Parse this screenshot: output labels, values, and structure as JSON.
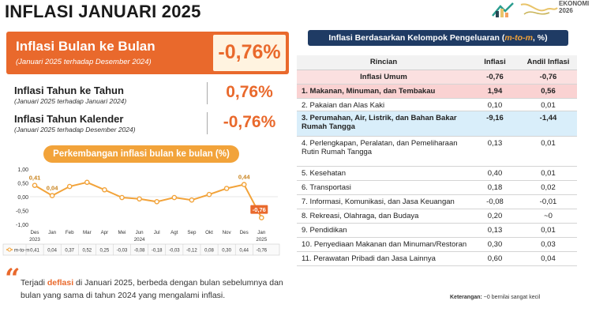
{
  "page": {
    "title": "INFLASI JANUARI 2025",
    "logo_text_line1": "EKONOMI",
    "logo_text_line2": "2026"
  },
  "mom": {
    "title": "Inflasi Bulan ke Bulan",
    "subtitle": "(Januari 2025 terhadap Desember 2024)",
    "value": "-0,76%"
  },
  "yoy": {
    "title": "Inflasi Tahun ke Tahun",
    "subtitle": "(Januari 2025 terhadap Januari 2024)",
    "value": "0,76%"
  },
  "ytd": {
    "title": "Inflasi Tahun Kalender",
    "subtitle": "(Januari 2025 terhadap Desember 2024)",
    "value": "-0,76%"
  },
  "chart_title": "Perkembangan inflasi bulan ke bulan (%)",
  "chart_data": {
    "type": "line",
    "categories": [
      "Des 2023",
      "Jan",
      "Feb",
      "Mar",
      "Apr",
      "Mei",
      "Jun",
      "Jul",
      "Agt",
      "Sep",
      "Okt",
      "Nov",
      "Des",
      "Jan 2025"
    ],
    "x_tick_top": [
      "Des",
      "Jan",
      "Feb",
      "Mar",
      "Apr",
      "Mei",
      "Jun",
      "Jul",
      "Agt",
      "Sep",
      "Okt",
      "Nov",
      "Des",
      "Jan"
    ],
    "x_tick_bottom": [
      "2023",
      "",
      "",
      "",
      "",
      "",
      "2024",
      "",
      "",
      "",
      "",
      "",
      "",
      "2025"
    ],
    "series": [
      {
        "name": "m-to-m",
        "values": [
          0.41,
          0.04,
          0.37,
          0.52,
          0.25,
          -0.03,
          -0.08,
          -0.18,
          -0.03,
          -0.12,
          0.08,
          0.3,
          0.44,
          -0.76
        ],
        "value_labels": [
          "0,41",
          "0,04",
          "0,37",
          "0,52",
          "0,25",
          "-0,03",
          "-0,08",
          "-0,18",
          "-0,03",
          "-0,12",
          "0,08",
          "0,30",
          "0,44",
          "-0,76"
        ],
        "color": "#f2a33a"
      }
    ],
    "highlighted_labels": [
      {
        "index": 0,
        "text": "0,41"
      },
      {
        "index": 1,
        "text": "0,04"
      },
      {
        "index": 12,
        "text": "0,44"
      },
      {
        "index": 13,
        "text": "-0,76"
      }
    ],
    "y_ticks": [
      "1,00",
      "0,50",
      "0,00",
      "-0,50",
      "-1,00"
    ],
    "ylim": [
      -1.0,
      1.0
    ],
    "grid": false,
    "legend": "bottom-left"
  },
  "quote": {
    "before": "Terjadi ",
    "highlight": "deflasi",
    "after": " di Januari 2025, berbeda dengan bulan sebelumnya dan bulan yang sama di tahun 2024 yang mengalami inflasi."
  },
  "table": {
    "title_before": "Inflasi Berdasarkan Kelompok Pengeluaran (",
    "title_highlight": "m-to-m",
    "title_after": ", %)",
    "headers": [
      "Rincian",
      "Inflasi",
      "Andil Inflasi"
    ],
    "umum": {
      "name": "Inflasi Umum",
      "inflasi": "-0,76",
      "andil": "-0,76"
    },
    "rows": [
      {
        "name": "1. Makanan, Minuman, dan Tembakau",
        "inflasi": "1,94",
        "andil": "0,56"
      },
      {
        "name": "2. Pakaian dan Alas Kaki",
        "inflasi": "0,10",
        "andil": "0,01"
      },
      {
        "name": "3. Perumahan, Air, Listrik, dan Bahan Bakar Rumah Tangga",
        "inflasi": "-9,16",
        "andil": "-1,44"
      },
      {
        "name": "4. Perlengkapan, Peralatan, dan Pemeliharaan Rutin Rumah Tangga",
        "inflasi": "0,13",
        "andil": "0,01"
      },
      {
        "name": "5. Kesehatan",
        "inflasi": "0,40",
        "andil": "0,01"
      },
      {
        "name": "6. Transportasi",
        "inflasi": "0,18",
        "andil": "0,02"
      },
      {
        "name": "7. Informasi, Komunikasi, dan Jasa Keuangan",
        "inflasi": "-0,08",
        "andil": "-0,01"
      },
      {
        "name": "8. Rekreasi, Olahraga, dan Budaya",
        "inflasi": "0,20",
        "andil": "~0"
      },
      {
        "name": "9. Pendidikan",
        "inflasi": "0,13",
        "andil": "0,01"
      },
      {
        "name": "10. Penyediaan Makanan dan Minuman/Restoran",
        "inflasi": "0,30",
        "andil": "0,03"
      },
      {
        "name": "11. Perawatan Pribadi dan Jasa Lainnya",
        "inflasi": "0,60",
        "andil": "0,04"
      }
    ],
    "footnote_label": "Keterangan:",
    "footnote_text": " ~0 bernilai sangat kecil"
  },
  "colors": {
    "orange": "#e9692c",
    "amber": "#f2a33a",
    "navy": "#1f3b64",
    "pink_row": "#fad2d2",
    "blue_row": "#d9eefa"
  }
}
